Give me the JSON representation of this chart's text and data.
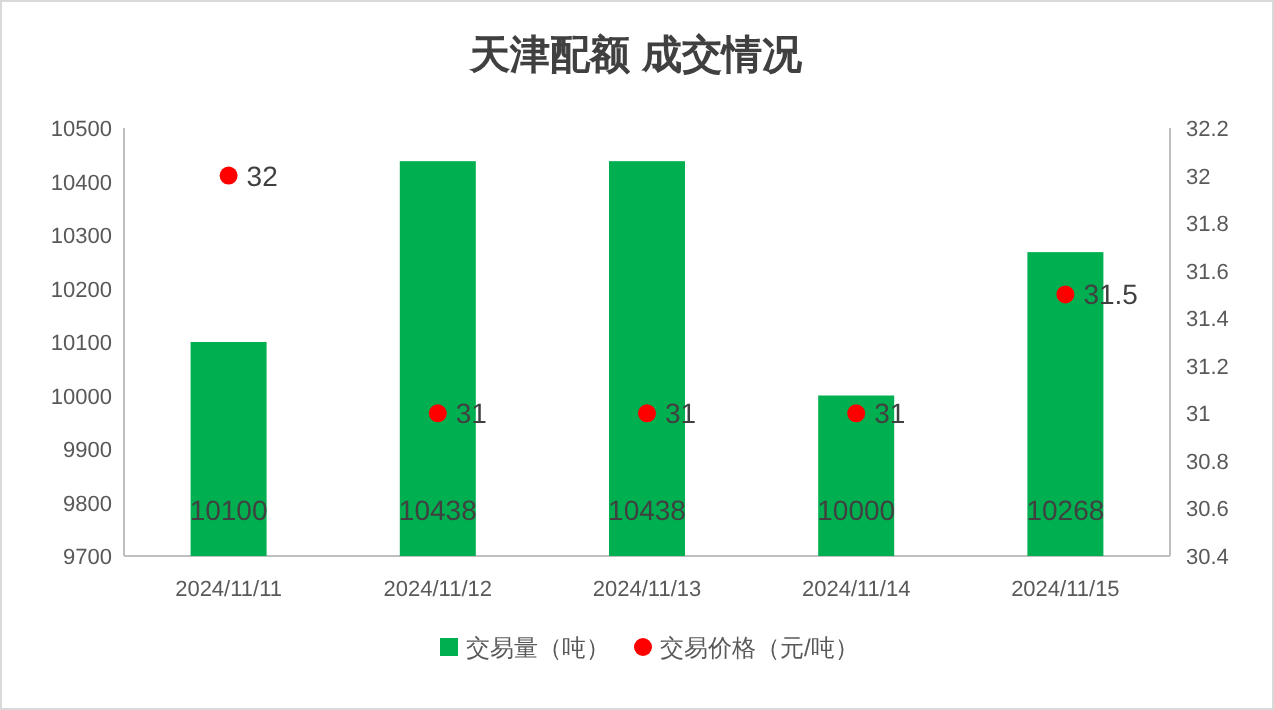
{
  "chart_data": {
    "type": "bar",
    "title": "天津配额 成交情况",
    "categories": [
      "2024/11/11",
      "2024/11/12",
      "2024/11/13",
      "2024/11/14",
      "2024/11/15"
    ],
    "series": [
      {
        "name": "交易量（吨）",
        "color": "#00b050",
        "values": [
          10100,
          10438,
          10438,
          10000,
          10268
        ]
      },
      {
        "name": "交易价格（元/吨）",
        "type": "scatter",
        "color": "#ff0000",
        "axis": "y2",
        "marker": "circle",
        "values": [
          32,
          31,
          31,
          31,
          31.5
        ]
      }
    ],
    "ylim": [
      9700,
      10500
    ],
    "yticks": [
      9700,
      9800,
      9900,
      10000,
      10100,
      10200,
      10300,
      10400,
      10500
    ],
    "y2lim": [
      30.4,
      32.2
    ],
    "y2ticks": [
      30.4,
      30.6,
      30.8,
      31,
      31.2,
      31.4,
      31.6,
      31.8,
      32,
      32.2
    ],
    "data_labels": true,
    "legend": "bottom"
  }
}
